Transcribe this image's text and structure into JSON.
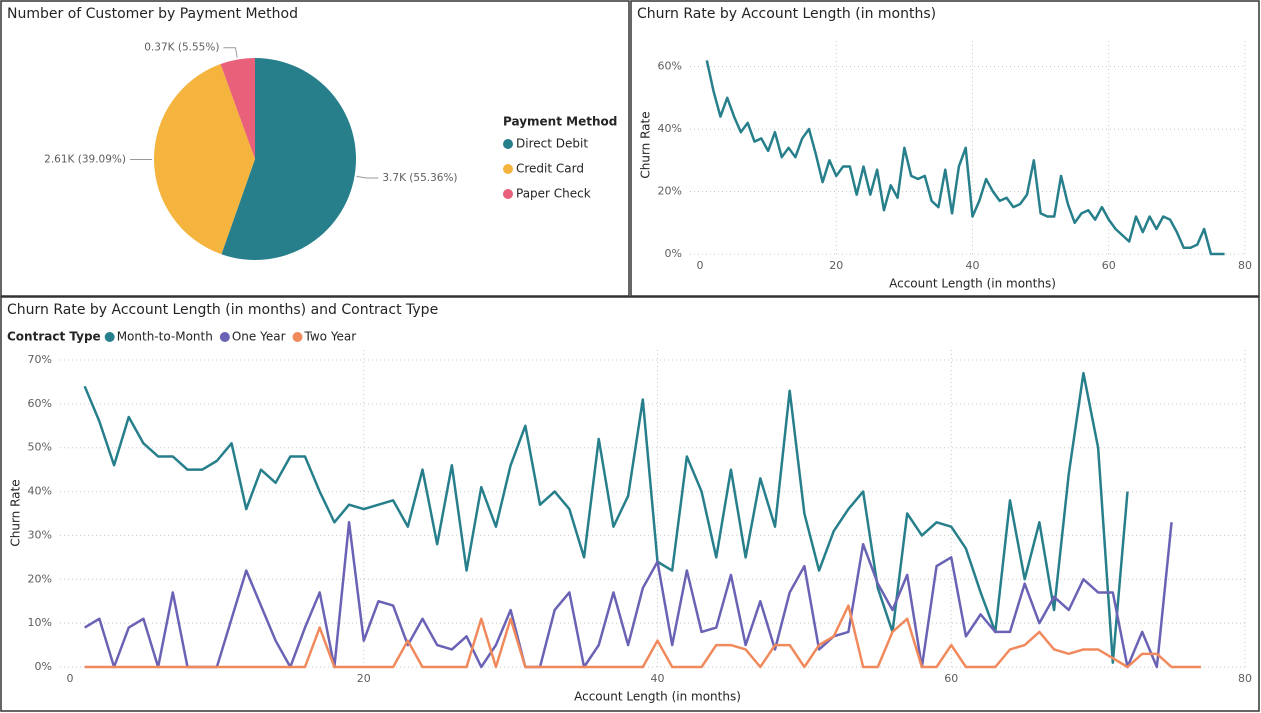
{
  "chart_data": [
    {
      "type": "pie",
      "title": "Number of Customer by Payment Method",
      "legend_title": "Payment Method",
      "categories": [
        "Direct Debit",
        "Credit Card",
        "Paper Check"
      ],
      "values": [
        3700,
        2610,
        370
      ],
      "value_labels": [
        "3.7K (55.36%)",
        "2.61K (39.09%)",
        "0.37K (5.55%)"
      ],
      "colors": [
        "#267f8b",
        "#f4b43e",
        "#e8607a"
      ],
      "legend": "right"
    },
    {
      "type": "line",
      "title": "Churn Rate by Account Length (in months)",
      "xlabel": "Account Length (in months)",
      "ylabel": "Churn Rate",
      "x": [
        1,
        2,
        3,
        4,
        5,
        6,
        7,
        8,
        9,
        10,
        11,
        12,
        13,
        14,
        15,
        16,
        17,
        18,
        19,
        20,
        21,
        22,
        23,
        24,
        25,
        26,
        27,
        28,
        29,
        30,
        31,
        32,
        33,
        34,
        35,
        36,
        37,
        38,
        39,
        40,
        41,
        42,
        43,
        44,
        45,
        46,
        47,
        48,
        49,
        50,
        51,
        52,
        53,
        54,
        55,
        56,
        57,
        58,
        59,
        60,
        61,
        62,
        63,
        64,
        65,
        66,
        67,
        68,
        69,
        70,
        71,
        72,
        73,
        74,
        75,
        76,
        77
      ],
      "series": [
        {
          "name": "Churn Rate",
          "color": "#267f8b",
          "values": [
            62,
            52,
            44,
            50,
            44,
            39,
            42,
            36,
            37,
            33,
            39,
            31,
            34,
            31,
            37,
            40,
            32,
            23,
            30,
            25,
            28,
            28,
            19,
            28,
            19,
            27,
            14,
            22,
            18,
            34,
            25,
            24,
            25,
            17,
            15,
            27,
            13,
            28,
            34,
            12,
            17,
            24,
            20,
            17,
            18,
            15,
            16,
            19,
            30,
            13,
            12,
            12,
            25,
            16,
            10,
            13,
            14,
            11,
            15,
            11,
            8,
            6,
            4,
            12,
            7,
            12,
            8,
            12,
            11,
            7,
            2,
            2,
            3,
            8,
            0,
            0,
            0
          ]
        }
      ],
      "xlim": [
        0,
        80
      ],
      "xticks": [
        0,
        20,
        40,
        60,
        80
      ],
      "ylim": [
        0,
        65
      ],
      "yticks": [
        {
          "value": 0,
          "label": "0%"
        },
        {
          "value": 20,
          "label": "20%"
        },
        {
          "value": 40,
          "label": "40%"
        },
        {
          "value": 60,
          "label": "60%"
        }
      ],
      "grid": true
    },
    {
      "type": "line",
      "title": "Churn Rate by Account Length (in months) and Contract Type",
      "legend_title": "Contract Type",
      "xlabel": "Account Length (in months)",
      "ylabel": "Churn Rate",
      "x": [
        1,
        2,
        3,
        4,
        5,
        6,
        7,
        8,
        9,
        10,
        11,
        12,
        13,
        14,
        15,
        16,
        17,
        18,
        19,
        20,
        21,
        22,
        23,
        24,
        25,
        26,
        27,
        28,
        29,
        30,
        31,
        32,
        33,
        34,
        35,
        36,
        37,
        38,
        39,
        40,
        41,
        42,
        43,
        44,
        45,
        46,
        47,
        48,
        49,
        50,
        51,
        52,
        53,
        54,
        55,
        56,
        57,
        58,
        59,
        60,
        61,
        62,
        63,
        64,
        65,
        66,
        67,
        68,
        69,
        70,
        71,
        72,
        73,
        74,
        75,
        76,
        77
      ],
      "series": [
        {
          "name": "Month-to-Month",
          "color": "#267f8b",
          "values": [
            64,
            56,
            46,
            57,
            51,
            48,
            48,
            45,
            45,
            47,
            51,
            36,
            45,
            42,
            48,
            48,
            40,
            33,
            37,
            36,
            37,
            38,
            32,
            45,
            28,
            46,
            22,
            41,
            32,
            46,
            55,
            37,
            40,
            36,
            25,
            52,
            32,
            39,
            61,
            24,
            22,
            48,
            40,
            25,
            45,
            25,
            43,
            32,
            63,
            35,
            22,
            31,
            36,
            40,
            18,
            8,
            35,
            30,
            33,
            32,
            27,
            17,
            8,
            38,
            20,
            33,
            13,
            44,
            67,
            50,
            1,
            40,
            null,
            null,
            null,
            null,
            null
          ]
        },
        {
          "name": "One Year",
          "color": "#6a62b4",
          "values": [
            9,
            11,
            0,
            9,
            11,
            0,
            17,
            0,
            0,
            0,
            11,
            22,
            14,
            6,
            0,
            9,
            17,
            0,
            33,
            6,
            15,
            14,
            5,
            11,
            5,
            4,
            7,
            0,
            5,
            13,
            0,
            0,
            13,
            17,
            0,
            5,
            17,
            5,
            18,
            24,
            5,
            22,
            8,
            9,
            21,
            5,
            15,
            4,
            17,
            23,
            4,
            7,
            8,
            28,
            19,
            13,
            21,
            0,
            23,
            25,
            7,
            12,
            8,
            8,
            19,
            10,
            16,
            13,
            20,
            17,
            17,
            0,
            8,
            0,
            33,
            null,
            null
          ]
        },
        {
          "name": "Two Year",
          "color": "#f08a5d",
          "values": [
            0,
            0,
            0,
            0,
            0,
            0,
            0,
            0,
            0,
            0,
            0,
            0,
            0,
            0,
            0,
            0,
            9,
            0,
            0,
            0,
            0,
            0,
            6,
            0,
            0,
            0,
            0,
            11,
            0,
            11,
            0,
            0,
            0,
            0,
            0,
            0,
            0,
            0,
            0,
            6,
            0,
            0,
            0,
            5,
            5,
            4,
            0,
            5,
            5,
            0,
            5,
            7,
            14,
            0,
            0,
            8,
            11,
            0,
            0,
            5,
            0,
            0,
            0,
            4,
            5,
            8,
            4,
            3,
            4,
            4,
            2,
            0,
            3,
            3,
            0,
            0,
            0
          ]
        }
      ],
      "xlim": [
        0,
        80
      ],
      "xticks": [
        0,
        20,
        40,
        60,
        80
      ],
      "ylim": [
        0,
        70
      ],
      "yticks": [
        {
          "value": 0,
          "label": "0%"
        },
        {
          "value": 10,
          "label": "10%"
        },
        {
          "value": 20,
          "label": "20%"
        },
        {
          "value": 30,
          "label": "30%"
        },
        {
          "value": 40,
          "label": "40%"
        },
        {
          "value": 50,
          "label": "50%"
        },
        {
          "value": 60,
          "label": "60%"
        },
        {
          "value": 70,
          "label": "70%"
        }
      ],
      "grid": true,
      "legend": "top"
    }
  ]
}
